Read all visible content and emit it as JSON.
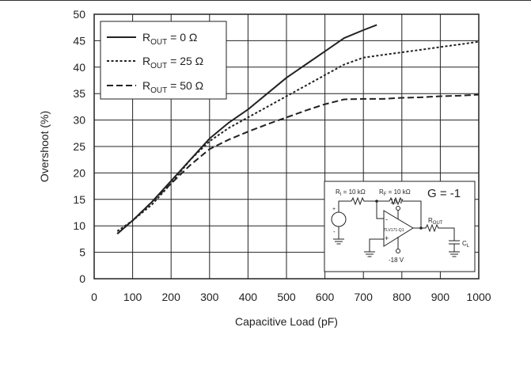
{
  "chart_data": {
    "type": "line",
    "xlabel": "Capacitive Load (pF)",
    "ylabel": "Overshoot (%)",
    "xlim": [
      0,
      1000
    ],
    "ylim": [
      0,
      50
    ],
    "x_ticks": [
      0,
      100,
      200,
      300,
      400,
      500,
      600,
      700,
      800,
      900,
      1000
    ],
    "y_ticks": [
      0,
      5,
      10,
      15,
      20,
      25,
      30,
      35,
      40,
      45,
      50
    ],
    "grid": true,
    "legend_position": "top-left",
    "series": [
      {
        "name_main": "R",
        "name_sub": "OUT",
        "name_rest": " = 0 Ω",
        "style": "solid",
        "x": [
          60,
          100,
          150,
          200,
          250,
          300,
          350,
          400,
          450,
          500,
          550,
          600,
          650,
          700,
          735
        ],
        "y": [
          8.5,
          11,
          14.5,
          18.5,
          22.5,
          26.5,
          29.5,
          32,
          35,
          38,
          40.5,
          43,
          45.5,
          47,
          48
        ]
      },
      {
        "name_main": "R",
        "name_sub": "OUT",
        "name_rest": " = 25 Ω",
        "style": "dotted",
        "x": [
          60,
          100,
          150,
          200,
          250,
          300,
          350,
          400,
          450,
          500,
          550,
          600,
          650,
          700,
          750,
          800,
          850,
          900,
          950,
          1000
        ],
        "y": [
          9,
          11,
          14,
          18,
          22.5,
          26,
          28.5,
          30.5,
          32.5,
          34.5,
          36.5,
          38.5,
          40.5,
          41.8,
          42.3,
          42.8,
          43.3,
          43.8,
          44.3,
          44.8
        ]
      },
      {
        "name_main": "R",
        "name_sub": "OUT",
        "name_rest": " = 50 Ω",
        "style": "dashed",
        "x": [
          60,
          100,
          150,
          200,
          250,
          300,
          350,
          400,
          450,
          500,
          550,
          600,
          650,
          700,
          750,
          800,
          850,
          900,
          950,
          1000
        ],
        "y": [
          8.5,
          11,
          14.5,
          18,
          21.5,
          24.5,
          26.3,
          27.8,
          29.2,
          30.5,
          31.8,
          33,
          33.9,
          34,
          34,
          34.2,
          34.3,
          34.5,
          34.6,
          34.8
        ]
      }
    ],
    "inset": {
      "gain_label": "G = -1",
      "ri_main": "R",
      "ri_sub": "I",
      "ri_rest": " = 10 kΩ",
      "rf_main": "R",
      "rf_sub": "F",
      "rf_rest": " = 10 kΩ",
      "vpos": "18 V",
      "vneg": "-18 V",
      "opamp": "TLV171-Q1",
      "rout_main": "R",
      "rout_sub": "OUT",
      "cl_main": "C",
      "cl_sub": "L",
      "plus": "+",
      "minus": "-"
    }
  }
}
